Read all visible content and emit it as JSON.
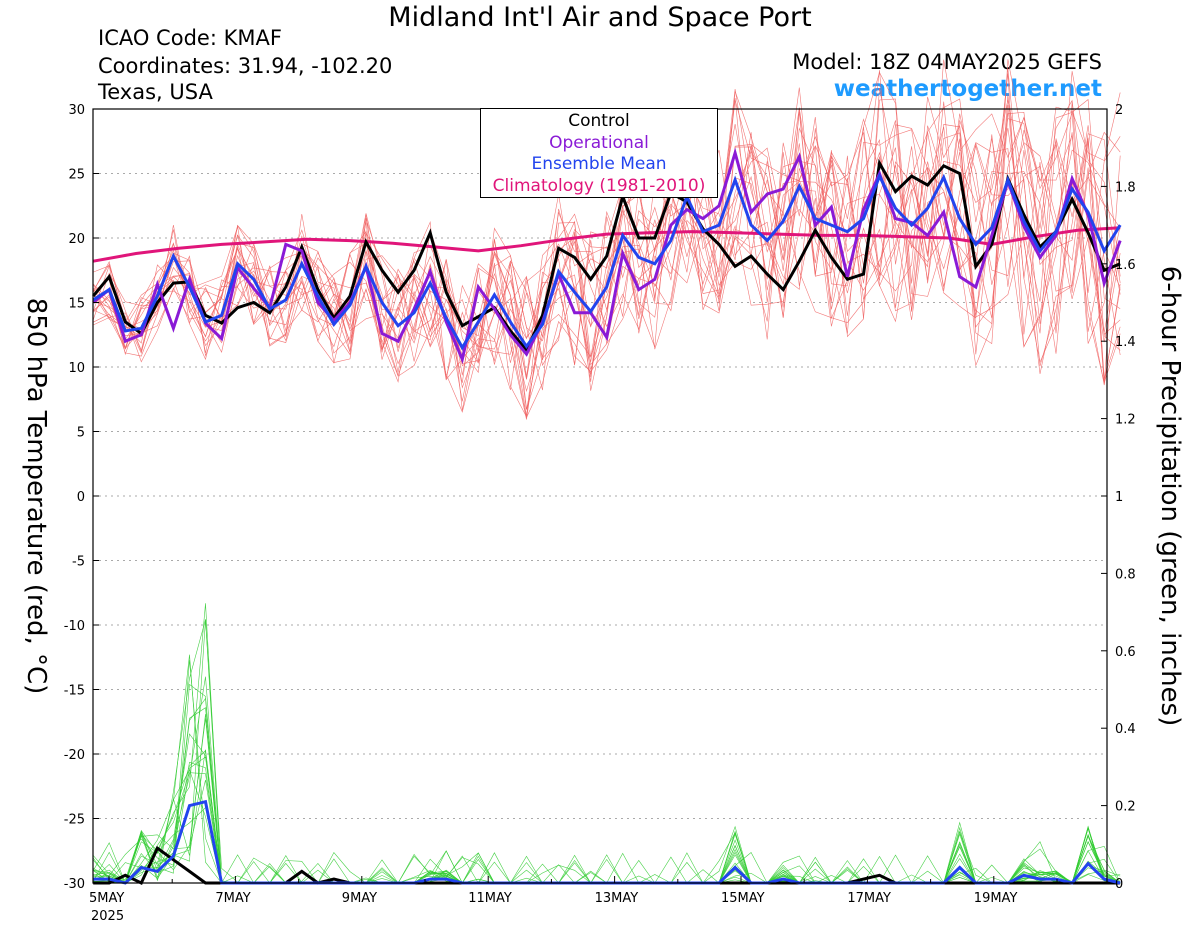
{
  "header": {
    "title": "Midland Int'l Air and Space Port",
    "icao": "ICAO Code: KMAF",
    "coords": "Coordinates: 31.94, -102.20",
    "region": "Texas, USA",
    "model": "Model: 18Z 04MAY2025 GEFS",
    "site": "weathertogether.net"
  },
  "legend": {
    "control": "Control",
    "operational": "Operational",
    "mean": "Ensemble Mean",
    "climatology": "Climatology (1981-2010)"
  },
  "colors": {
    "control": "#000000",
    "operational": "#8a1ad6",
    "mean": "#2244ee",
    "climatology": "#e0157a",
    "members_temp": "#f06060",
    "members_precip": "#33cc33",
    "site": "#1e9bff"
  },
  "chart_data": {
    "type": "line",
    "ylabel": "850 hPa Temperature (red, °C)",
    "y2label": "6-hour Precipitation (green, inches)",
    "ylim": [
      -30,
      30
    ],
    "y2lim": [
      0,
      2
    ],
    "y_ticks": [
      30,
      25,
      20,
      15,
      10,
      5,
      0,
      -5,
      -10,
      -15,
      -20,
      -25,
      -30
    ],
    "y2_ticks": [
      "2",
      "1.8",
      "1.6",
      "1.4",
      "1.2",
      "1",
      "0.8",
      "0.6",
      "0.4",
      "0.2",
      "0"
    ],
    "x_ticks": [
      {
        "label": "5MAY",
        "sub": "2025",
        "day": 0
      },
      {
        "label": "7MAY",
        "day": 2
      },
      {
        "label": "9MAY",
        "day": 4
      },
      {
        "label": "11MAY",
        "day": 6
      },
      {
        "label": "13MAY",
        "day": 8
      },
      {
        "label": "15MAY",
        "day": 10
      },
      {
        "label": "17MAY",
        "day": 12
      },
      {
        "label": "19MAY",
        "day": 14
      }
    ],
    "grid": true,
    "legend_position": "top-center",
    "x_start_day": -0.25,
    "x_end_day": 16.0,
    "series": [
      {
        "name": "Control",
        "values": [
          15.5,
          17.0,
          13.5,
          12.6,
          15.0,
          16.5,
          16.6,
          14.0,
          13.4,
          14.6,
          15.0,
          14.2,
          16.2,
          19.3,
          16.0,
          13.8,
          15.5,
          19.7,
          17.5,
          15.8,
          17.5,
          20.4,
          15.8,
          13.2,
          13.9,
          14.6,
          12.8,
          11.3,
          14.0,
          19.2,
          18.5,
          16.8,
          18.6,
          23.2,
          20.0,
          20.0,
          23.5,
          22.8,
          20.7,
          19.5,
          17.8,
          18.6,
          17.2,
          16.0,
          18.2,
          20.6,
          18.5,
          16.8,
          17.2,
          25.8,
          23.6,
          24.8,
          24.1,
          25.6,
          25.0,
          17.8,
          19.5,
          24.6,
          21.8,
          19.3,
          20.5,
          23.0,
          20.4,
          17.5,
          18.0
        ]
      },
      {
        "name": "Operational",
        "values": [
          15.0,
          16.0,
          12.0,
          12.5,
          16.4,
          13.0,
          16.8,
          13.4,
          12.2,
          17.7,
          16.1,
          14.6,
          19.5,
          19.0,
          15.0,
          13.6,
          15.0,
          17.8,
          12.6,
          12.0,
          14.5,
          17.4,
          13.5,
          10.6,
          16.2,
          14.5,
          12.5,
          11.0,
          13.5,
          17.2,
          14.2,
          14.2,
          12.3,
          18.8,
          16.0,
          16.8,
          21.0,
          22.2,
          21.5,
          22.5,
          26.6,
          22.0,
          23.4,
          23.8,
          26.3,
          21.0,
          22.4,
          17.0,
          22.2,
          25.0,
          21.5,
          21.2,
          20.2,
          22.0,
          17.0,
          16.2,
          20.2,
          24.4,
          20.9,
          18.5,
          20.2,
          24.6,
          21.8,
          16.5,
          19.8
        ]
      },
      {
        "name": "Ensemble Mean",
        "values": [
          15.2,
          16.0,
          12.8,
          13.0,
          15.5,
          18.6,
          16.2,
          13.5,
          14.0,
          18.0,
          16.8,
          14.5,
          15.2,
          18.0,
          15.5,
          13.3,
          14.8,
          17.8,
          15.0,
          13.2,
          14.2,
          16.5,
          13.8,
          11.5,
          13.5,
          15.6,
          13.5,
          11.6,
          13.3,
          17.4,
          15.8,
          14.3,
          16.2,
          20.2,
          18.5,
          18.0,
          19.8,
          23.2,
          20.5,
          21.0,
          24.5,
          21.0,
          19.8,
          21.3,
          24.0,
          21.5,
          21.0,
          20.5,
          21.5,
          24.8,
          22.3,
          21.0,
          22.3,
          24.7,
          21.5,
          19.5,
          20.8,
          24.5,
          21.3,
          19.0,
          20.5,
          23.8,
          22.0,
          19.0,
          21.0
        ]
      },
      {
        "name": "Climatology (1981-2010)",
        "values": [
          18.2,
          18.8,
          19.2,
          19.5,
          19.7,
          19.9,
          19.8,
          19.6,
          19.3,
          19.0,
          19.4,
          19.9,
          20.3,
          20.4,
          20.5,
          20.4,
          20.3,
          20.2,
          20.2,
          20.1,
          20.0,
          19.5,
          20.1,
          20.6,
          20.8
        ]
      },
      {
        "name": "Control precipitation",
        "values": [
          0,
          0,
          0.02,
          0,
          0.09,
          0.06,
          0.03,
          0,
          0,
          0,
          0,
          0,
          0,
          0.03,
          0,
          0.01,
          0,
          0,
          0,
          0,
          0,
          0,
          0,
          0,
          0,
          0,
          0,
          0,
          0,
          0,
          0,
          0,
          0,
          0,
          0,
          0,
          0,
          0,
          0,
          0,
          0,
          0,
          0,
          0,
          0,
          0,
          0,
          0,
          0.01,
          0.02,
          0,
          0,
          0,
          0,
          0,
          0,
          0,
          0,
          0,
          0,
          0,
          0,
          0,
          0,
          0
        ]
      },
      {
        "name": "Ensemble Mean precipitation",
        "values": [
          0.01,
          0.01,
          0,
          0.04,
          0.03,
          0.07,
          0.2,
          0.21,
          0,
          0,
          0,
          0,
          0,
          0,
          0,
          0,
          0,
          0,
          0,
          0,
          0,
          0.01,
          0.01,
          0,
          0,
          0,
          0,
          0,
          0,
          0,
          0,
          0,
          0,
          0,
          0,
          0,
          0,
          0,
          0,
          0,
          0.04,
          0,
          0,
          0.01,
          0,
          0,
          0,
          0,
          0,
          0,
          0,
          0,
          0,
          0,
          0.04,
          0,
          0,
          0,
          0.02,
          0.01,
          0.01,
          0,
          0.05,
          0.01,
          0
        ]
      }
    ]
  }
}
